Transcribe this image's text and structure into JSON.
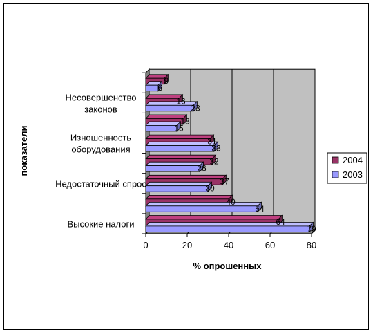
{
  "chart_data": {
    "type": "bar",
    "orientation": "horizontal",
    "style": "3d-clustered",
    "xlabel": "% опрошенных",
    "ylabel": "показатели",
    "xlim": [
      0,
      80
    ],
    "xticks": [
      0,
      20,
      40,
      60,
      80
    ],
    "grid": true,
    "legend": "right",
    "categories": [
      "Высокие налоги",
      "",
      "Недостаточный спрос",
      "",
      "Изношенность оборудования",
      "",
      "Несовершенство законов",
      ""
    ],
    "category_text": [
      [
        "Высокие налоги"
      ],
      [],
      [
        "Недостаточный спрос"
      ],
      [],
      [
        "Изношенность",
        "оборудования"
      ],
      [],
      [
        "Несовершенство",
        "законов"
      ],
      []
    ],
    "series": [
      {
        "name": "2004",
        "color": "#993366",
        "values": [
          64,
          40,
          37,
          32,
          31,
          18,
          16,
          9
        ]
      },
      {
        "name": "2003",
        "color": "#9999ff",
        "values": [
          79,
          54,
          30,
          26,
          33,
          15,
          23,
          6
        ]
      }
    ],
    "colors": {
      "wall": "#c0c0c0",
      "floor": "#808080",
      "grid": "#000000"
    }
  }
}
